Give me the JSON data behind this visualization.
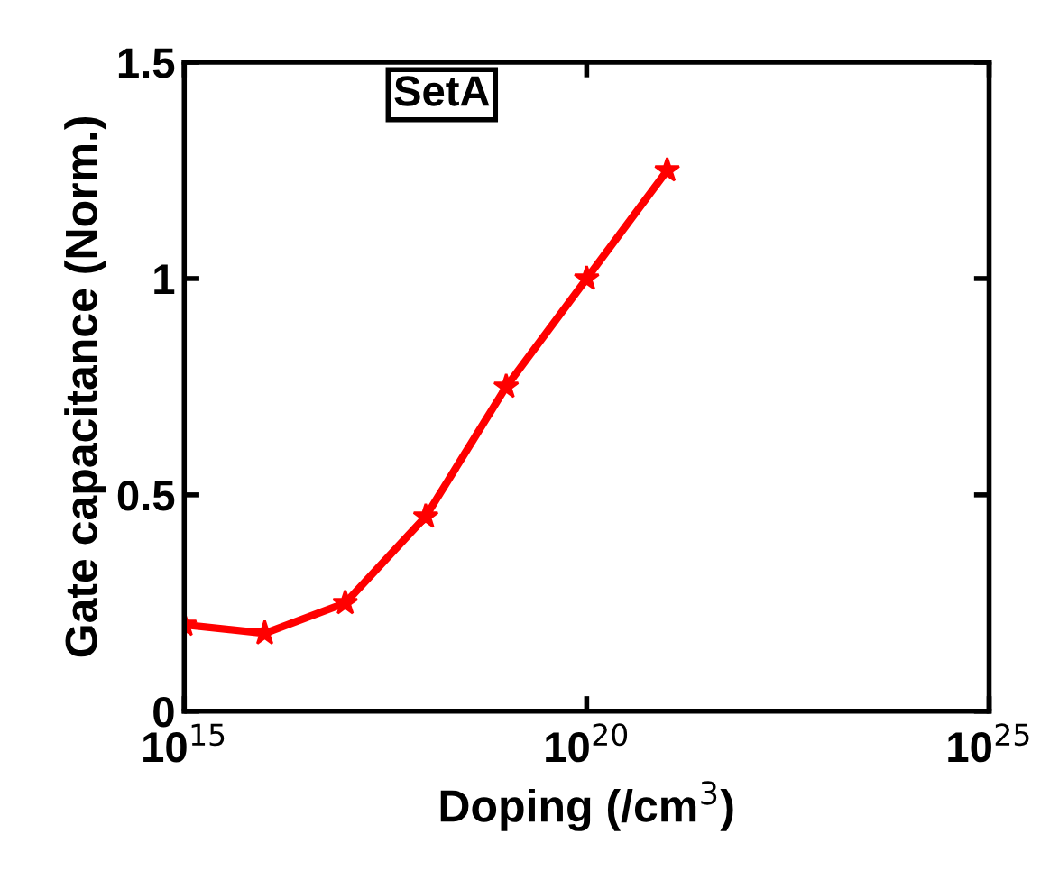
{
  "chart_data": {
    "type": "line",
    "xlabel": "Doping (/cm$^{3}$)",
    "ylabel": "Gate capacitance (Norm.)",
    "annotations": [
      "SetA"
    ],
    "x": [
      1000000000000000.0,
      1e+16,
      1e+17,
      1e+18,
      1e+19,
      1e+20,
      1e+21
    ],
    "series": [
      {
        "color": "#ff0000",
        "values": [
          0.2,
          0.18,
          0.25,
          0.45,
          0.75,
          1.0,
          1.25
        ]
      }
    ],
    "log": "x",
    "xlim": [
      1000000000000000.0,
      1e+25
    ],
    "xticks": [
      {
        "value": 1000000000000000.0,
        "label": "10$^{15}$"
      },
      {
        "value": 1e+20,
        "label": "10$^{20}$"
      },
      {
        "value": 1e+25,
        "label": "10$^{25}$"
      }
    ],
    "ylim": [
      0,
      1.5
    ],
    "yticks": [
      0,
      0.5,
      1,
      1.5
    ],
    "marker": "star",
    "line_style": "solid",
    "grid": false,
    "legend": false
  }
}
